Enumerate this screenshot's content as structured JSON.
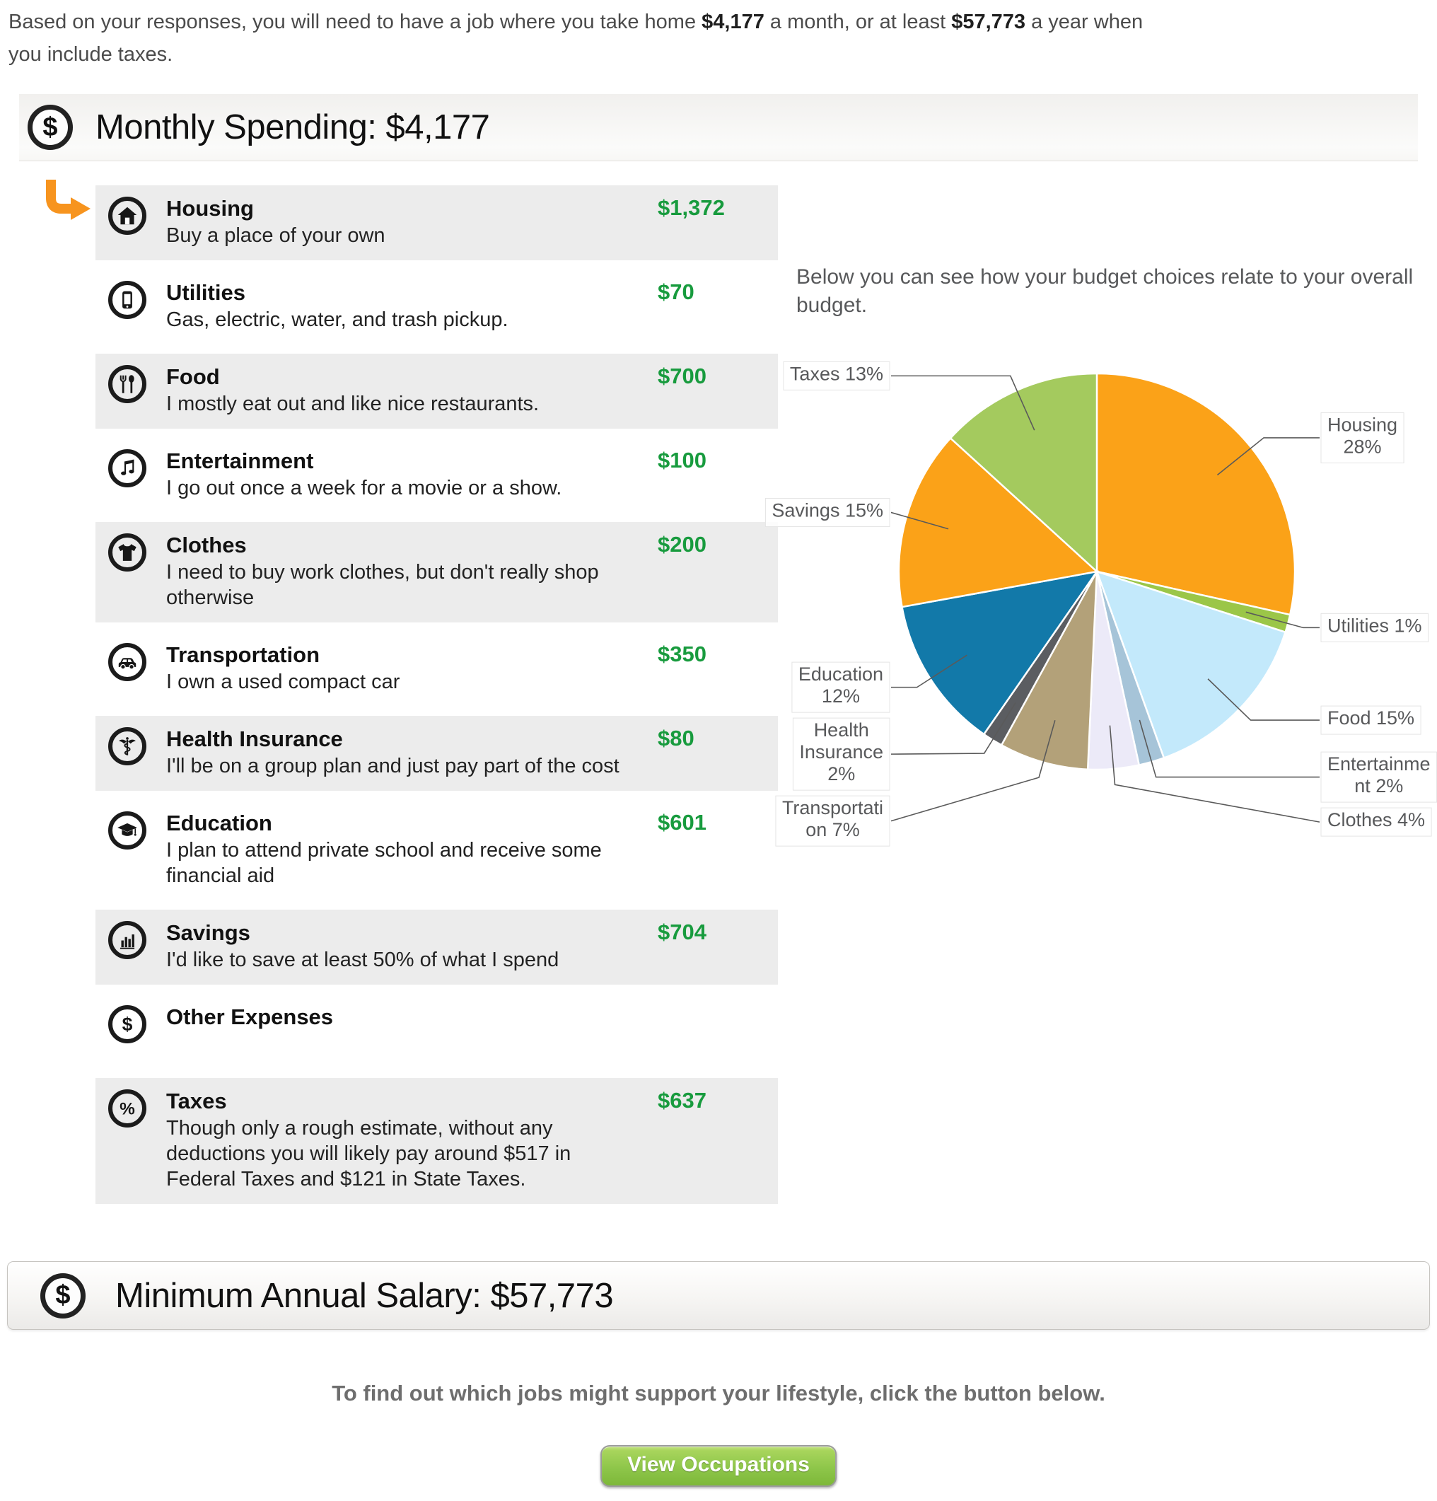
{
  "intro": {
    "pre": "Based on your responses, you will need to have a job where you take home ",
    "monthly_amount": "$4,177",
    "mid": " a month, or at least ",
    "annual_amount": "$57,773",
    "post": " a year when you include taxes."
  },
  "monthly_header": {
    "title": "Monthly Spending: $4,177",
    "icon": "dollar-circle-icon",
    "dollar_glyph": "$"
  },
  "categories": [
    {
      "name": "Housing",
      "description": "Buy a place of your own",
      "amount": "$1,372",
      "icon": "house-icon",
      "selected": true
    },
    {
      "name": "Utilities",
      "description": "Gas, electric, water, and trash pickup.",
      "amount": "$70",
      "icon": "mobile-phone-icon",
      "selected": false
    },
    {
      "name": "Food",
      "description": "I mostly eat out and like nice restaurants.",
      "amount": "$700",
      "icon": "fork-spoon-icon",
      "selected": false
    },
    {
      "name": "Entertainment",
      "description": "I go out once a week for a movie or a show.",
      "amount": "$100",
      "icon": "music-notes-icon",
      "selected": false
    },
    {
      "name": "Clothes",
      "description": "I need to buy work clothes, but don't really shop otherwise",
      "amount": "$200",
      "icon": "tshirt-icon",
      "selected": false
    },
    {
      "name": "Transportation",
      "description": "I own a used compact car",
      "amount": "$350",
      "icon": "car-icon",
      "selected": false
    },
    {
      "name": "Health Insurance",
      "description": "I'll be on a group plan and just pay part of the cost",
      "amount": "$80",
      "icon": "caduceus-icon",
      "selected": false
    },
    {
      "name": "Education",
      "description": "I plan to attend private school and receive some financial aid",
      "amount": "$601",
      "icon": "graduation-cap-icon",
      "selected": false
    },
    {
      "name": "Savings",
      "description": "I'd like to save at least 50% of what I spend",
      "amount": "$704",
      "icon": "bar-chart-icon",
      "selected": false
    },
    {
      "name": "Other Expenses",
      "description": "",
      "amount": "",
      "icon": "dollar-icon",
      "selected": false
    },
    {
      "name": "Taxes",
      "description": "Though only a rough estimate, without any deductions you will likely pay around $517 in Federal Taxes and $121 in State Taxes.",
      "amount": "$637",
      "icon": "percent-icon",
      "selected": false
    }
  ],
  "chart_note": "Below you can see how your budget choices relate to your overall budget.",
  "chart_data": {
    "type": "pie",
    "start_angle_deg": 0,
    "direction": "clockwise",
    "slices": [
      {
        "label": "Housing",
        "pct_display": "28%",
        "value": 28.5,
        "color": "#FBA218",
        "side": "right",
        "label_lines": [
          "Housing",
          "28%"
        ]
      },
      {
        "label": "Utilities",
        "pct_display": "1%",
        "value": 1.45,
        "color": "#9BC648",
        "side": "right",
        "label_lines": [
          "Utilities 1%"
        ]
      },
      {
        "label": "Food",
        "pct_display": "15%",
        "value": 14.55,
        "color": "#C3E9FB",
        "side": "right",
        "label_lines": [
          "Food 15%"
        ]
      },
      {
        "label": "Entertainment",
        "pct_display": "2%",
        "value": 2.08,
        "color": "#A6C4D8",
        "side": "right",
        "label_lines": [
          "Entertainme",
          "nt 2%"
        ]
      },
      {
        "label": "Clothes",
        "pct_display": "4%",
        "value": 4.15,
        "color": "#ECEAF8",
        "side": "right",
        "label_lines": [
          "Clothes 4%"
        ]
      },
      {
        "label": "Transportation",
        "pct_display": "7%",
        "value": 7.27,
        "color": "#B3A179",
        "side": "left",
        "label_lines": [
          "Transportati",
          "on 7%"
        ]
      },
      {
        "label": "Health Insurance",
        "pct_display": "2%",
        "value": 1.66,
        "color": "#5B5D61",
        "side": "left",
        "label_lines": [
          "Health",
          "Insurance",
          "2%"
        ]
      },
      {
        "label": "Education",
        "pct_display": "12%",
        "value": 12.48,
        "color": "#1279A9",
        "side": "left",
        "label_lines": [
          "Education",
          "12%"
        ]
      },
      {
        "label": "Savings",
        "pct_display": "15%",
        "value": 14.62,
        "color": "#FBA218",
        "side": "left",
        "label_lines": [
          "Savings 15%"
        ]
      },
      {
        "label": "Taxes",
        "pct_display": "13%",
        "value": 13.24,
        "color": "#A4CA5E",
        "side": "left",
        "label_lines": [
          "Taxes 13%"
        ]
      }
    ]
  },
  "annual_header": {
    "title": "Minimum Annual Salary: $57,773",
    "icon": "dollar-circle-icon",
    "dollar_glyph": "$"
  },
  "cta": {
    "text": "To find out which jobs might support your lifestyle, click the button below.",
    "button_label": "View Occupations"
  },
  "colors": {
    "amount_green": "#189B3E",
    "accent_orange": "#F7941E",
    "button_green_top": "#A8D55C",
    "button_green_bottom": "#7DB839",
    "row_gray": "#ECECEC"
  }
}
